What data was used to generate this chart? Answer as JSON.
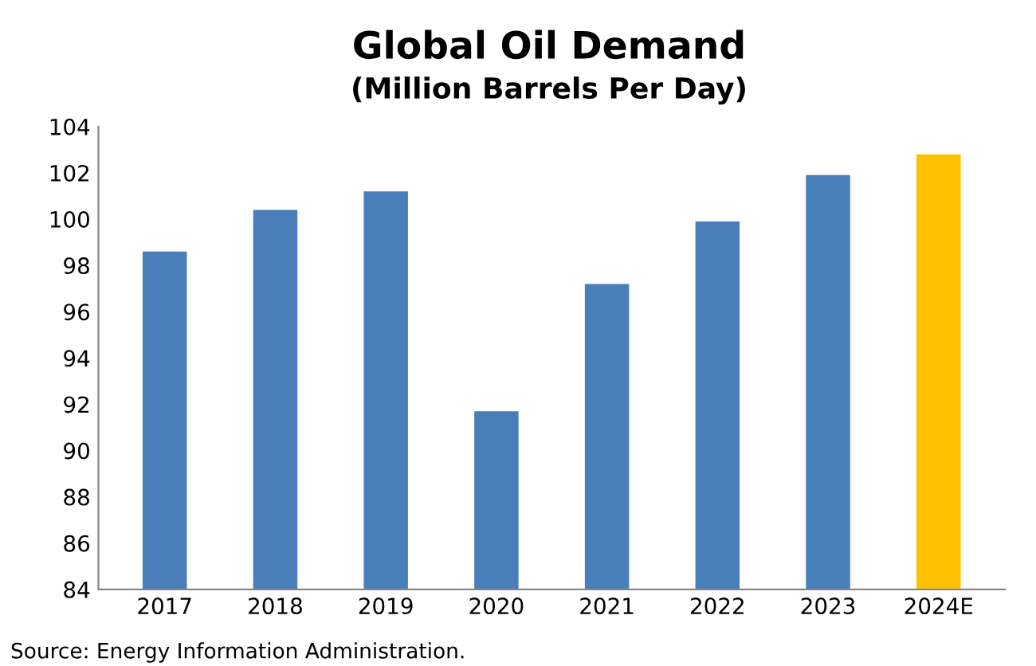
{
  "chart_data": {
    "type": "bar",
    "title": "Global Oil Demand",
    "subtitle": "(Million Barrels Per Day)",
    "categories": [
      "2017",
      "2018",
      "2019",
      "2020",
      "2021",
      "2022",
      "2023",
      "2024E"
    ],
    "values": [
      98.6,
      100.4,
      101.2,
      91.7,
      97.2,
      99.9,
      101.9,
      102.8
    ],
    "colors": [
      "#4a7ebb",
      "#4a7ebb",
      "#4a7ebb",
      "#4a7ebb",
      "#4a7ebb",
      "#4a7ebb",
      "#4a7ebb",
      "#ffc000"
    ],
    "ylim": [
      84,
      104
    ],
    "yticks": [
      84,
      86,
      88,
      90,
      92,
      94,
      96,
      98,
      100,
      102,
      104
    ],
    "grid": false,
    "annotations": [
      "Source: Energy Information Administration."
    ]
  }
}
